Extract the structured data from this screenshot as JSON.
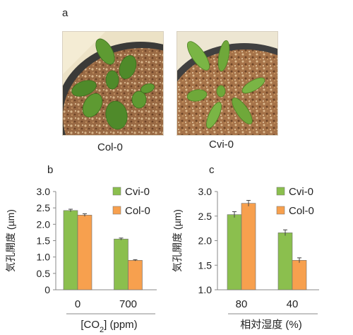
{
  "panel_a": {
    "label": "a",
    "photos": [
      {
        "caption": "Col-0"
      },
      {
        "caption": "Cvi-0"
      }
    ]
  },
  "chart_data": [
    {
      "panel_label": "b",
      "type": "bar",
      "categories": [
        "0",
        "700"
      ],
      "xlabel_parts": [
        "[CO",
        "2",
        "] (ppm)"
      ],
      "ylabel": "気孔開度 (µm)",
      "ylim": [
        0,
        3.0
      ],
      "yticks": [
        "0",
        "0.5",
        "1.0",
        "1.5",
        "2.0",
        "2.5",
        "3.0"
      ],
      "series": [
        {
          "name": "Cvi-0",
          "values": [
            2.42,
            1.55
          ],
          "errors": [
            0.04,
            0.03
          ],
          "color": "#8bbf4e"
        },
        {
          "name": "Col-0",
          "values": [
            2.28,
            0.9
          ],
          "errors": [
            0.04,
            0.02
          ],
          "color": "#f7a04e"
        }
      ],
      "legend": "top-right"
    },
    {
      "panel_label": "c",
      "type": "bar",
      "categories": [
        "80",
        "40"
      ],
      "xlabel": "相対湿度 (%)",
      "ylabel": "気孔開度 (µm)",
      "ylim": [
        1.0,
        3.0
      ],
      "yticks": [
        "1.0",
        "1.5",
        "2.0",
        "2.5",
        "3.0"
      ],
      "series": [
        {
          "name": "Cvi-0",
          "values": [
            2.53,
            2.16
          ],
          "errors": [
            0.06,
            0.06
          ],
          "color": "#8bbf4e"
        },
        {
          "name": "Col-0",
          "values": [
            2.76,
            1.6
          ],
          "errors": [
            0.06,
            0.05
          ],
          "color": "#f7a04e"
        }
      ],
      "legend": "top-right"
    }
  ]
}
